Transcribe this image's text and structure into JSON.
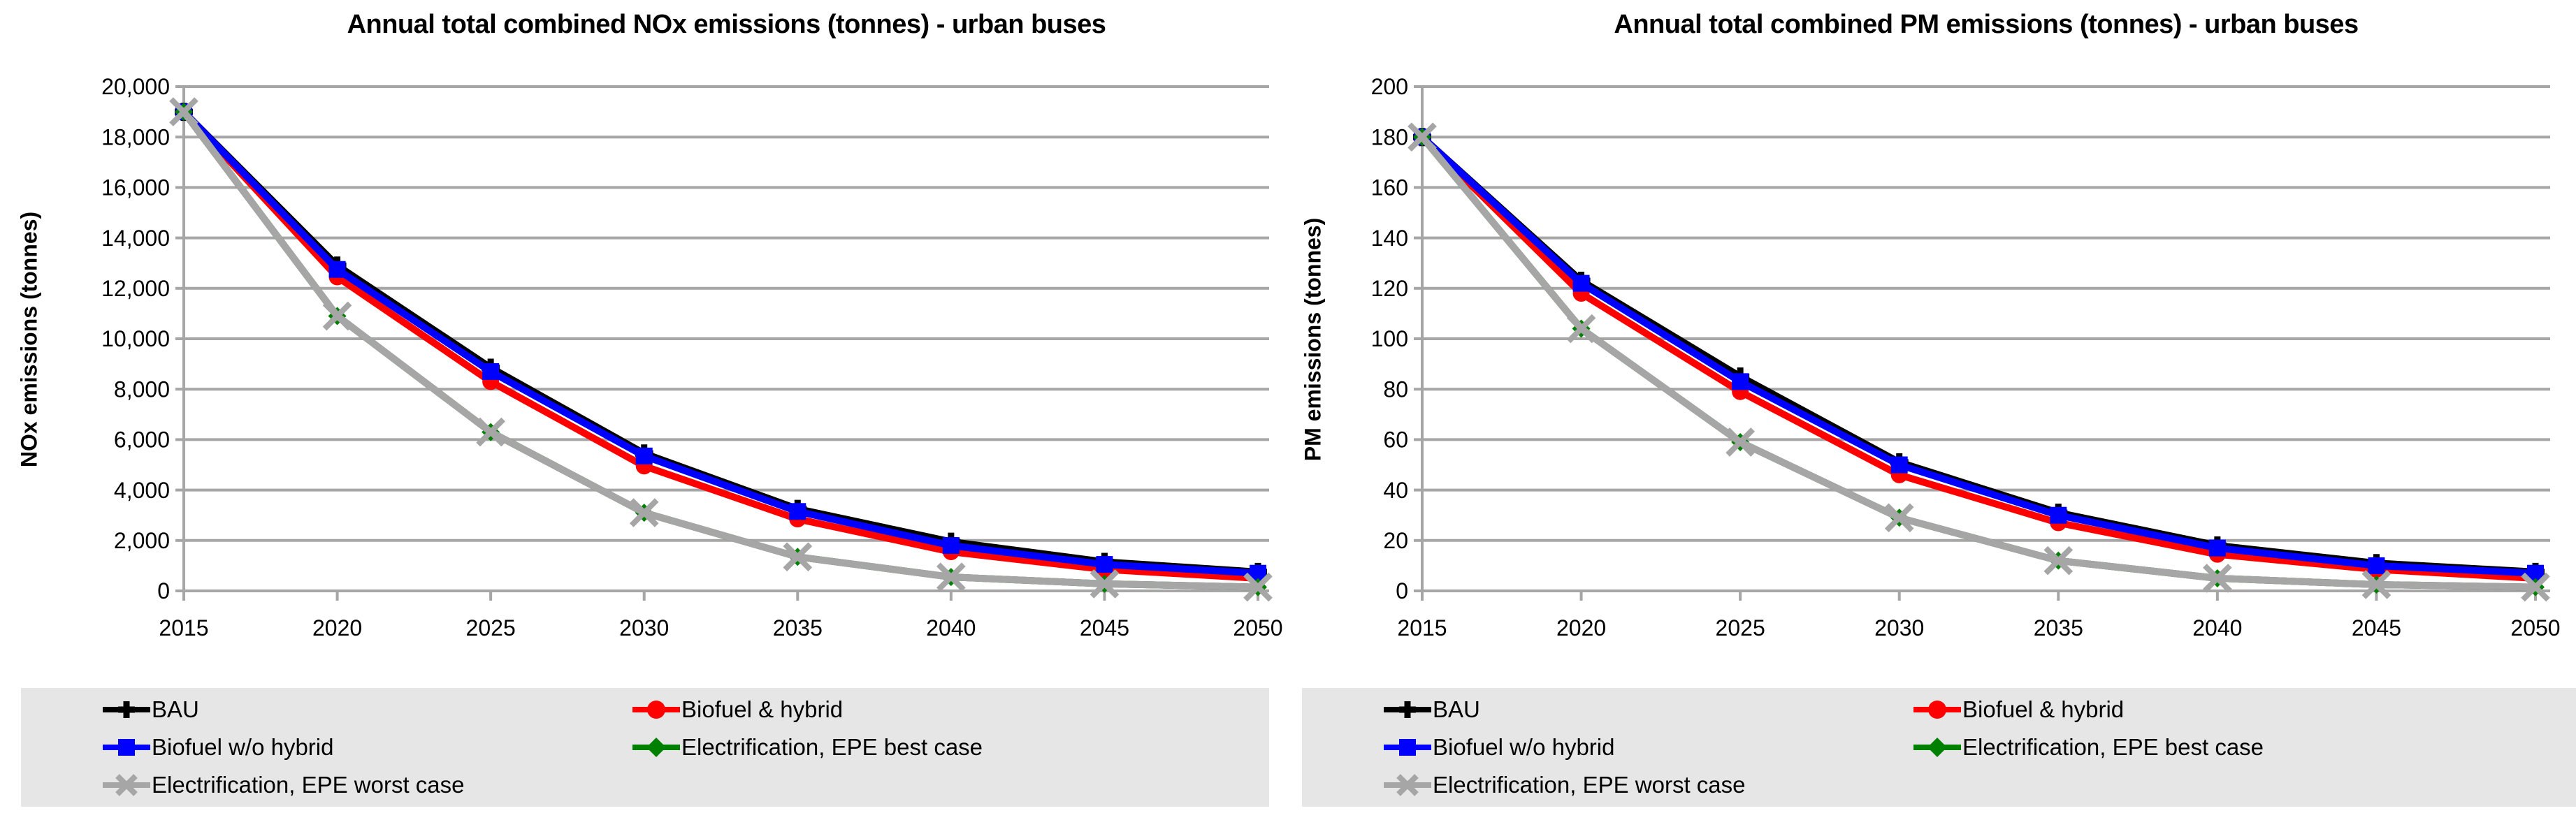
{
  "style_colors": {
    "background": "#FFFFFF",
    "grid": "#A6A6A6",
    "axis": "#A6A6A6",
    "legend_background": "#E6E6E6",
    "text": "#000000",
    "bau": "#000000",
    "biofuel_hybrid": "#FF0000",
    "biofuel_wo_hybrid": "#0000FF",
    "electrification_best": "#008000",
    "electrification_worst": "#A6A6A6"
  },
  "chart_data": [
    {
      "type": "line",
      "title": "Annual total combined NOx emissions (tonnes) - urban buses",
      "xlabel": "",
      "ylabel": "NOx emissions (tonnes)",
      "ylim": [
        0,
        20000
      ],
      "ytick_step": 2000,
      "ytick_labels": [
        "0",
        "2,000",
        "4,000",
        "6,000",
        "8,000",
        "10,000",
        "12,000",
        "14,000",
        "16,000",
        "18,000",
        "20,000"
      ],
      "x": [
        "2015",
        "2020",
        "2025",
        "2030",
        "2035",
        "2040",
        "2045",
        "2050"
      ],
      "grid": true,
      "legend_position": "bottom",
      "series": [
        {
          "name": "BAU",
          "color": "#000000",
          "marker": "plus",
          "values": [
            19000,
            12900,
            8850,
            5450,
            3250,
            1950,
            1150,
            750
          ]
        },
        {
          "name": "Biofuel & hybrid",
          "color": "#FF0000",
          "marker": "circle",
          "values": [
            19000,
            12450,
            8300,
            4950,
            2850,
            1550,
            850,
            500
          ]
        },
        {
          "name": "Biofuel w/o hybrid",
          "color": "#0000FF",
          "marker": "square",
          "values": [
            19000,
            12750,
            8700,
            5350,
            3150,
            1800,
            1050,
            700
          ]
        },
        {
          "name": "Electrification, EPE best case",
          "color": "#008000",
          "marker": "diamond",
          "values": [
            19000,
            10900,
            6300,
            3100,
            1350,
            550,
            280,
            150
          ]
        },
        {
          "name": "Electrification, EPE worst case",
          "color": "#A6A6A6",
          "marker": "x",
          "values": [
            19000,
            10900,
            6300,
            3100,
            1350,
            550,
            280,
            150
          ]
        }
      ]
    },
    {
      "type": "line",
      "title": "Annual total combined PM emissions (tonnes) - urban buses",
      "xlabel": "",
      "ylabel": "PM emissions (tonnes)",
      "ylim": [
        0,
        200
      ],
      "ytick_step": 20,
      "ytick_labels": [
        "0",
        "20",
        "40",
        "60",
        "80",
        "100",
        "120",
        "140",
        "160",
        "180",
        "200"
      ],
      "x": [
        "2015",
        "2020",
        "2025",
        "2030",
        "2035",
        "2040",
        "2045",
        "2050"
      ],
      "grid": true,
      "legend_position": "bottom",
      "series": [
        {
          "name": "BAU",
          "color": "#000000",
          "marker": "plus",
          "values": [
            180,
            123,
            85,
            51,
            31,
            18,
            11,
            7.5
          ]
        },
        {
          "name": "Biofuel & hybrid",
          "color": "#FF0000",
          "marker": "circle",
          "values": [
            180,
            118,
            79,
            46,
            27,
            14.5,
            8.5,
            5
          ]
        },
        {
          "name": "Biofuel w/o hybrid",
          "color": "#0000FF",
          "marker": "square",
          "values": [
            180,
            122,
            83,
            50,
            30,
            17,
            10,
            7
          ]
        },
        {
          "name": "Electrification, EPE best case",
          "color": "#008000",
          "marker": "diamond",
          "values": [
            180,
            104,
            59,
            29,
            12,
            5,
            2.5,
            1.5
          ]
        },
        {
          "name": "Electrification, EPE worst case",
          "color": "#A6A6A6",
          "marker": "x",
          "values": [
            180,
            104,
            59,
            29,
            12,
            5,
            2.5,
            1.5
          ]
        }
      ]
    }
  ]
}
